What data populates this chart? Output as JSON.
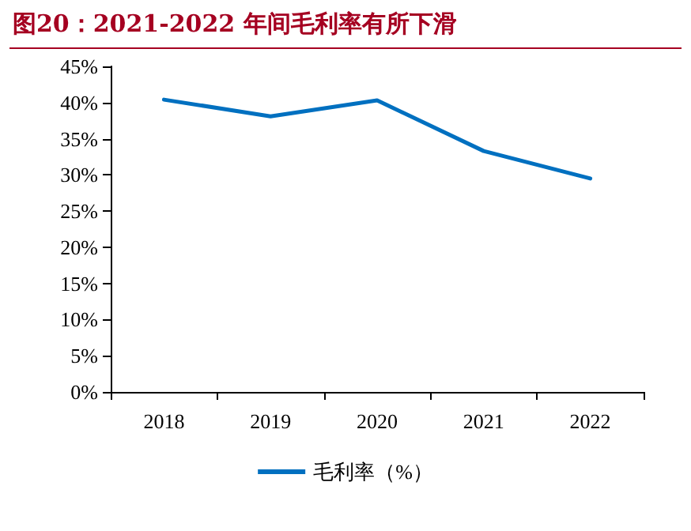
{
  "chart_data": {
    "type": "line",
    "title": "图20：2021-2022 年间毛利率有所下滑",
    "categories": [
      "2018",
      "2019",
      "2020",
      "2021",
      "2022"
    ],
    "series": [
      {
        "name": "毛利率（%）",
        "color": "#0070c0",
        "values": [
          40.4,
          38.1,
          40.3,
          33.3,
          29.5
        ]
      }
    ],
    "ylim": [
      0,
      45
    ],
    "yticks": [
      {
        "value": 0,
        "label": "0%"
      },
      {
        "value": 5,
        "label": "5%"
      },
      {
        "value": 10,
        "label": "10%"
      },
      {
        "value": 15,
        "label": "15%"
      },
      {
        "value": 20,
        "label": "20%"
      },
      {
        "value": 25,
        "label": "25%"
      },
      {
        "value": 30,
        "label": "30%"
      },
      {
        "value": 35,
        "label": "35%"
      },
      {
        "value": 40,
        "label": "40%"
      },
      {
        "value": 45,
        "label": "45%"
      }
    ],
    "grid": false,
    "legend": "bottom",
    "marker": "none",
    "line_style": "solid"
  }
}
